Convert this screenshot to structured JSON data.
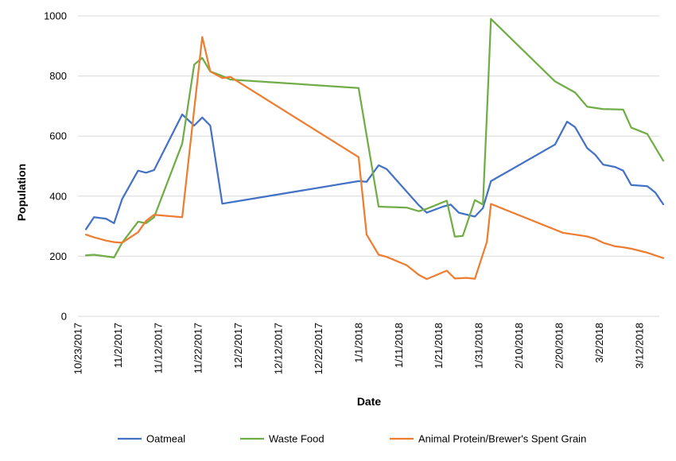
{
  "chart_data": {
    "type": "line",
    "xlabel": "Date",
    "ylabel": "Population",
    "ylim": [
      0,
      1000
    ],
    "y_ticks": [
      0,
      200,
      400,
      600,
      800,
      1000
    ],
    "xlim": [
      "2017-10-23",
      "2018-03-17"
    ],
    "x_tick_labels": [
      "10/23/2017",
      "11/2/2017",
      "11/12/2017",
      "11/22/2017",
      "12/2/2017",
      "12/12/2017",
      "12/22/2017",
      "1/1/2018",
      "1/11/2018",
      "1/21/2018",
      "1/31/2018",
      "2/10/2018",
      "2/20/2018",
      "3/2/2018",
      "3/12/2018"
    ],
    "grid": true,
    "legend_position": "bottom",
    "series": [
      {
        "name": "Oatmeal",
        "color": "#4472C4",
        "points": [
          [
            "2017-10-25",
            290
          ],
          [
            "2017-10-27",
            330
          ],
          [
            "2017-10-30",
            325
          ],
          [
            "2017-11-01",
            310
          ],
          [
            "2017-11-03",
            390
          ],
          [
            "2017-11-07",
            485
          ],
          [
            "2017-11-09",
            478
          ],
          [
            "2017-11-11",
            487
          ],
          [
            "2017-11-18",
            672
          ],
          [
            "2017-11-21",
            635
          ],
          [
            "2017-11-23",
            662
          ],
          [
            "2017-11-25",
            635
          ],
          [
            "2017-11-28",
            375
          ],
          [
            "2018-01-01",
            450
          ],
          [
            "2018-01-03",
            448
          ],
          [
            "2018-01-06",
            503
          ],
          [
            "2018-01-08",
            490
          ],
          [
            "2018-01-13",
            415
          ],
          [
            "2018-01-16",
            370
          ],
          [
            "2018-01-18",
            345
          ],
          [
            "2018-01-22",
            365
          ],
          [
            "2018-01-24",
            372
          ],
          [
            "2018-01-26",
            345
          ],
          [
            "2018-01-30",
            332
          ],
          [
            "2018-02-01",
            360
          ],
          [
            "2018-02-03",
            450
          ],
          [
            "2018-02-19",
            572
          ],
          [
            "2018-02-22",
            648
          ],
          [
            "2018-02-24",
            630
          ],
          [
            "2018-02-27",
            560
          ],
          [
            "2018-03-01",
            538
          ],
          [
            "2018-03-03",
            505
          ],
          [
            "2018-03-06",
            497
          ],
          [
            "2018-03-08",
            485
          ],
          [
            "2018-03-10",
            437
          ],
          [
            "2018-03-14",
            433
          ],
          [
            "2018-03-16",
            412
          ],
          [
            "2018-03-18",
            373
          ]
        ]
      },
      {
        "name": "Waste Food",
        "color": "#70AD47",
        "points": [
          [
            "2017-10-25",
            203
          ],
          [
            "2017-10-27",
            205
          ],
          [
            "2017-11-01",
            196
          ],
          [
            "2017-11-03",
            245
          ],
          [
            "2017-11-07",
            315
          ],
          [
            "2017-11-09",
            310
          ],
          [
            "2017-11-11",
            330
          ],
          [
            "2017-11-18",
            575
          ],
          [
            "2017-11-21",
            838
          ],
          [
            "2017-11-23",
            860
          ],
          [
            "2017-11-25",
            815
          ],
          [
            "2017-11-28",
            800
          ],
          [
            "2017-11-30",
            788
          ],
          [
            "2018-01-01",
            760
          ],
          [
            "2018-01-06",
            365
          ],
          [
            "2018-01-13",
            362
          ],
          [
            "2018-01-16",
            350
          ],
          [
            "2018-01-18",
            358
          ],
          [
            "2018-01-23",
            385
          ],
          [
            "2018-01-25",
            265
          ],
          [
            "2018-01-27",
            268
          ],
          [
            "2018-01-30",
            387
          ],
          [
            "2018-02-01",
            372
          ],
          [
            "2018-02-02",
            670
          ],
          [
            "2018-02-03",
            990
          ],
          [
            "2018-02-19",
            782
          ],
          [
            "2018-02-24",
            745
          ],
          [
            "2018-02-27",
            698
          ],
          [
            "2018-03-03",
            690
          ],
          [
            "2018-03-08",
            688
          ],
          [
            "2018-03-10",
            628
          ],
          [
            "2018-03-14",
            607
          ],
          [
            "2018-03-18",
            518
          ]
        ]
      },
      {
        "name": "Animal Protein/Brewer's Spent Grain",
        "color": "#ED7D31",
        "points": [
          [
            "2017-10-25",
            272
          ],
          [
            "2017-10-27",
            263
          ],
          [
            "2017-10-30",
            252
          ],
          [
            "2017-11-01",
            247
          ],
          [
            "2017-11-03",
            245
          ],
          [
            "2017-11-07",
            280
          ],
          [
            "2017-11-09",
            318
          ],
          [
            "2017-11-11",
            338
          ],
          [
            "2017-11-18",
            330
          ],
          [
            "2017-11-23",
            930
          ],
          [
            "2017-11-25",
            815
          ],
          [
            "2017-11-28",
            793
          ],
          [
            "2017-11-30",
            797
          ],
          [
            "2018-01-01",
            530
          ],
          [
            "2018-01-03",
            272
          ],
          [
            "2018-01-06",
            205
          ],
          [
            "2018-01-08",
            198
          ],
          [
            "2018-01-13",
            170
          ],
          [
            "2018-01-16",
            138
          ],
          [
            "2018-01-18",
            124
          ],
          [
            "2018-01-23",
            152
          ],
          [
            "2018-01-25",
            126
          ],
          [
            "2018-01-28",
            128
          ],
          [
            "2018-01-30",
            125
          ],
          [
            "2018-02-02",
            248
          ],
          [
            "2018-02-03",
            374
          ],
          [
            "2018-02-21",
            278
          ],
          [
            "2018-02-24",
            272
          ],
          [
            "2018-02-27",
            266
          ],
          [
            "2018-03-01",
            258
          ],
          [
            "2018-03-03",
            245
          ],
          [
            "2018-03-06",
            233
          ],
          [
            "2018-03-08",
            230
          ],
          [
            "2018-03-10",
            225
          ],
          [
            "2018-03-14",
            212
          ],
          [
            "2018-03-18",
            194
          ]
        ]
      }
    ]
  }
}
